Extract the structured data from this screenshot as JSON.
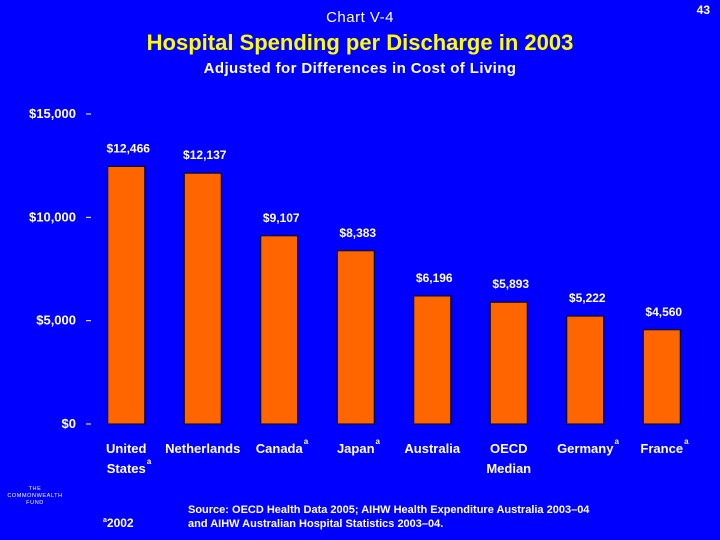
{
  "header": {
    "chart_label": "Chart V-4",
    "page_number": "43",
    "title": "Hospital Spending per Discharge in 2003",
    "subtitle": "Adjusted for Differences in Cost of Living"
  },
  "chart_data": {
    "type": "bar",
    "title": "Hospital Spending per Discharge in 2003",
    "subtitle": "Adjusted for Differences in Cost of Living",
    "categories": [
      {
        "line1": "United",
        "line2": "States",
        "note": "a"
      },
      {
        "line1": "Netherlands",
        "line2": "",
        "note": ""
      },
      {
        "line1": "Canada",
        "line2": "",
        "note": "a"
      },
      {
        "line1": "Japan",
        "line2": "",
        "note": "a"
      },
      {
        "line1": "Australia",
        "line2": "",
        "note": ""
      },
      {
        "line1": "OECD",
        "line2": "Median",
        "note": ""
      },
      {
        "line1": "Germany",
        "line2": "",
        "note": "a"
      },
      {
        "line1": "France",
        "line2": "",
        "note": "a"
      }
    ],
    "values": [
      12466,
      12137,
      9107,
      8383,
      6196,
      5893,
      5222,
      4560
    ],
    "data_labels": [
      "$12,466",
      "$12,137",
      "$9,107",
      "$8,383",
      "$6,196",
      "$5,893",
      "$5,222",
      "$4,560"
    ],
    "yticks": [
      0,
      5000,
      10000,
      15000
    ],
    "ytick_labels": [
      "$0",
      "$5,000",
      "$10,000",
      "$15,000"
    ],
    "ylim": [
      0,
      15000
    ],
    "xlabel": "",
    "ylabel": "",
    "grid": false,
    "colors": {
      "background": "#0000ff",
      "bar": "#ff6600",
      "bar_outline": "#000000",
      "title": "#ffff00",
      "text": "#ffffff"
    }
  },
  "footer": {
    "logo_lines": [
      "THE",
      "COMMONWEALTH",
      "FUND"
    ],
    "footnote_marker": "a",
    "footnote_text": "2002",
    "source_line1": "Source: OECD Health Data 2005; AIHW Health Expenditure Australia 2003–04",
    "source_line2": "and AIHW Australian Hospital Statistics 2003–04."
  }
}
